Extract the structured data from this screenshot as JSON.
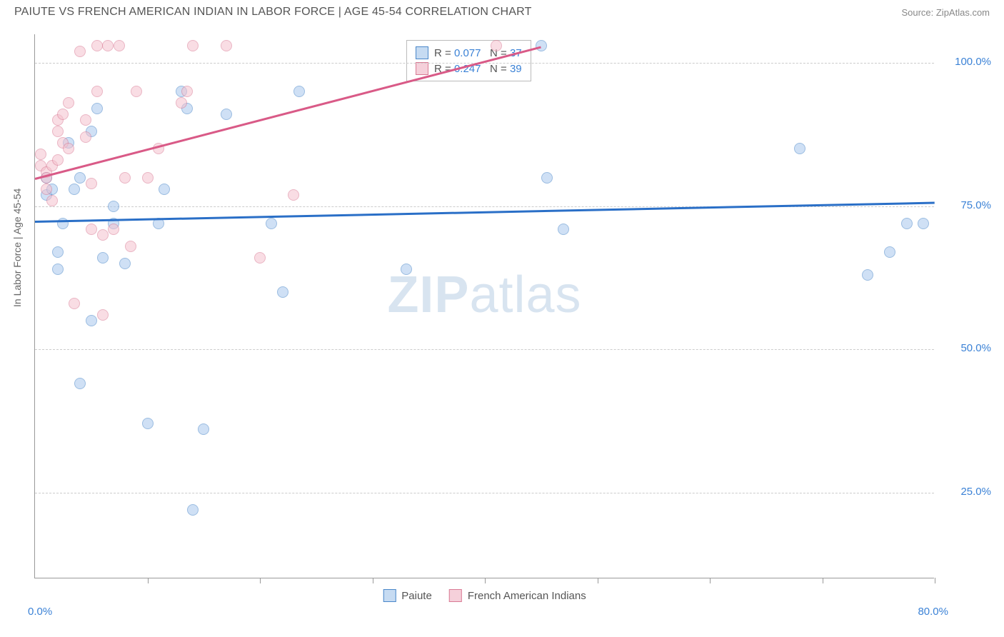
{
  "header": {
    "title": "PAIUTE VS FRENCH AMERICAN INDIAN IN LABOR FORCE | AGE 45-54 CORRELATION CHART",
    "source": "Source: ZipAtlas.com"
  },
  "chart": {
    "type": "scatter",
    "ylabel": "In Labor Force | Age 45-54",
    "xlim": [
      0,
      80
    ],
    "ylim": [
      10,
      105
    ],
    "yticks": [
      {
        "value": 25,
        "label": "25.0%"
      },
      {
        "value": 50,
        "label": "50.0%"
      },
      {
        "value": 75,
        "label": "75.0%"
      },
      {
        "value": 100,
        "label": "100.0%"
      }
    ],
    "xticks": [
      0,
      10,
      20,
      30,
      40,
      50,
      60,
      70,
      80
    ],
    "xtick_labels": [
      {
        "value": 0,
        "label": "0.0%"
      },
      {
        "value": 80,
        "label": "80.0%"
      }
    ],
    "grid_color": "#cccccc",
    "background_color": "#ffffff",
    "series": [
      {
        "name": "Paiute",
        "color_fill": "#a8c8ed",
        "color_stroke": "#4a87c9",
        "r_value": "0.077",
        "n_value": "37",
        "regression": {
          "x1": 0,
          "y1": 72.5,
          "x2": 80,
          "y2": 75.8
        },
        "points": [
          {
            "x": 1,
            "y": 80
          },
          {
            "x": 1,
            "y": 77
          },
          {
            "x": 1.5,
            "y": 78
          },
          {
            "x": 2,
            "y": 67
          },
          {
            "x": 2,
            "y": 64
          },
          {
            "x": 2.5,
            "y": 72
          },
          {
            "x": 3,
            "y": 86
          },
          {
            "x": 3.5,
            "y": 78
          },
          {
            "x": 4,
            "y": 44
          },
          {
            "x": 4,
            "y": 80
          },
          {
            "x": 5,
            "y": 55
          },
          {
            "x": 5.5,
            "y": 92
          },
          {
            "x": 6,
            "y": 66
          },
          {
            "x": 7,
            "y": 75
          },
          {
            "x": 7,
            "y": 72
          },
          {
            "x": 8,
            "y": 65
          },
          {
            "x": 10,
            "y": 37
          },
          {
            "x": 11,
            "y": 72
          },
          {
            "x": 11.5,
            "y": 78
          },
          {
            "x": 13,
            "y": 95
          },
          {
            "x": 13.5,
            "y": 92
          },
          {
            "x": 14,
            "y": 22
          },
          {
            "x": 15,
            "y": 36
          },
          {
            "x": 17,
            "y": 91
          },
          {
            "x": 21,
            "y": 72
          },
          {
            "x": 22,
            "y": 60
          },
          {
            "x": 23.5,
            "y": 95
          },
          {
            "x": 33,
            "y": 64
          },
          {
            "x": 45,
            "y": 103
          },
          {
            "x": 45.5,
            "y": 80
          },
          {
            "x": 47,
            "y": 71
          },
          {
            "x": 68,
            "y": 85
          },
          {
            "x": 74,
            "y": 63
          },
          {
            "x": 76,
            "y": 67
          },
          {
            "x": 77.5,
            "y": 72
          },
          {
            "x": 79,
            "y": 72
          },
          {
            "x": 5,
            "y": 88
          }
        ]
      },
      {
        "name": "French American Indians",
        "color_fill": "#f5c2ce",
        "color_stroke": "#d97a94",
        "r_value": "0.247",
        "n_value": "39",
        "regression": {
          "x1": 0,
          "y1": 80,
          "x2": 45,
          "y2": 103
        },
        "points": [
          {
            "x": 0.5,
            "y": 82
          },
          {
            "x": 0.5,
            "y": 84
          },
          {
            "x": 1,
            "y": 81
          },
          {
            "x": 1,
            "y": 78
          },
          {
            "x": 1,
            "y": 80
          },
          {
            "x": 1.5,
            "y": 82
          },
          {
            "x": 1.5,
            "y": 76
          },
          {
            "x": 2,
            "y": 83
          },
          {
            "x": 2,
            "y": 90
          },
          {
            "x": 2,
            "y": 88
          },
          {
            "x": 2.5,
            "y": 86
          },
          {
            "x": 2.5,
            "y": 91
          },
          {
            "x": 3,
            "y": 85
          },
          {
            "x": 3,
            "y": 93
          },
          {
            "x": 3.5,
            "y": 58
          },
          {
            "x": 4,
            "y": 102
          },
          {
            "x": 4.5,
            "y": 87
          },
          {
            "x": 4.5,
            "y": 90
          },
          {
            "x": 5,
            "y": 79
          },
          {
            "x": 5,
            "y": 71
          },
          {
            "x": 5.5,
            "y": 95
          },
          {
            "x": 5.5,
            "y": 103
          },
          {
            "x": 6,
            "y": 70
          },
          {
            "x": 6,
            "y": 56
          },
          {
            "x": 6.5,
            "y": 103
          },
          {
            "x": 7,
            "y": 71
          },
          {
            "x": 7.5,
            "y": 103
          },
          {
            "x": 8,
            "y": 80
          },
          {
            "x": 8.5,
            "y": 68
          },
          {
            "x": 9,
            "y": 95
          },
          {
            "x": 10,
            "y": 80
          },
          {
            "x": 11,
            "y": 85
          },
          {
            "x": 13,
            "y": 93
          },
          {
            "x": 13.5,
            "y": 95
          },
          {
            "x": 14,
            "y": 103
          },
          {
            "x": 17,
            "y": 103
          },
          {
            "x": 20,
            "y": 66
          },
          {
            "x": 23,
            "y": 77
          },
          {
            "x": 41,
            "y": 103
          }
        ]
      }
    ],
    "legend_bottom": [
      {
        "swatch": "blue",
        "label": "Paiute"
      },
      {
        "swatch": "pink",
        "label": "French American Indians"
      }
    ],
    "watermark": {
      "bold": "ZIP",
      "rest": "atlas"
    }
  }
}
